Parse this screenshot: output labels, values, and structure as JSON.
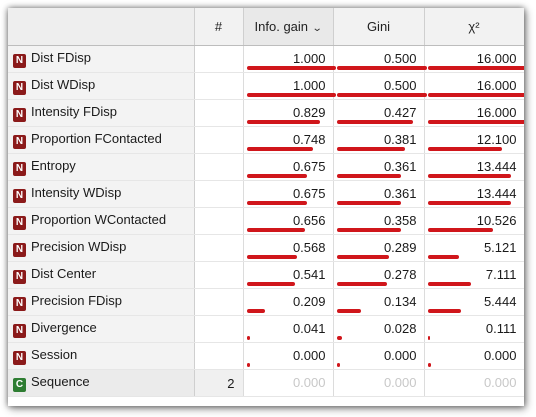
{
  "colors": {
    "bar": "#d0161b",
    "numeric_badge": "#8b1a1a",
    "categorical_badge": "#2e7d32"
  },
  "columns": {
    "rank": "#",
    "info_gain": "Info. gain",
    "sort_icon": "chevron-down-icon",
    "gini": "Gini",
    "chi2": "χ²"
  },
  "rows": [
    {
      "type": "N",
      "name": "Dist FDisp",
      "rank": "",
      "info_gain": "1.000",
      "gini": "0.500",
      "chi2": "16.000",
      "ig_frac": 1.0,
      "gini_frac": 1.0,
      "chi_frac": 1.0
    },
    {
      "type": "N",
      "name": "Dist WDisp",
      "rank": "",
      "info_gain": "1.000",
      "gini": "0.500",
      "chi2": "16.000",
      "ig_frac": 1.0,
      "gini_frac": 1.0,
      "chi_frac": 1.0
    },
    {
      "type": "N",
      "name": "Intensity FDisp",
      "rank": "",
      "info_gain": "0.829",
      "gini": "0.427",
      "chi2": "16.000",
      "ig_frac": 0.829,
      "gini_frac": 0.854,
      "chi_frac": 1.0
    },
    {
      "type": "N",
      "name": "Proportion FContacted",
      "rank": "",
      "info_gain": "0.748",
      "gini": "0.381",
      "chi2": "12.100",
      "ig_frac": 0.748,
      "gini_frac": 0.762,
      "chi_frac": 0.756
    },
    {
      "type": "N",
      "name": "Entropy",
      "rank": "",
      "info_gain": "0.675",
      "gini": "0.361",
      "chi2": "13.444",
      "ig_frac": 0.675,
      "gini_frac": 0.722,
      "chi_frac": 0.84
    },
    {
      "type": "N",
      "name": "Intensity WDisp",
      "rank": "",
      "info_gain": "0.675",
      "gini": "0.361",
      "chi2": "13.444",
      "ig_frac": 0.675,
      "gini_frac": 0.722,
      "chi_frac": 0.84
    },
    {
      "type": "N",
      "name": "Proportion WContacted",
      "rank": "",
      "info_gain": "0.656",
      "gini": "0.358",
      "chi2": "10.526",
      "ig_frac": 0.656,
      "gini_frac": 0.716,
      "chi_frac": 0.658
    },
    {
      "type": "N",
      "name": "Precision WDisp",
      "rank": "",
      "info_gain": "0.568",
      "gini": "0.289",
      "chi2": "5.121",
      "ig_frac": 0.568,
      "gini_frac": 0.578,
      "chi_frac": 0.32
    },
    {
      "type": "N",
      "name": "Dist Center",
      "rank": "",
      "info_gain": "0.541",
      "gini": "0.278",
      "chi2": "7.111",
      "ig_frac": 0.541,
      "gini_frac": 0.556,
      "chi_frac": 0.444
    },
    {
      "type": "N",
      "name": "Precision FDisp",
      "rank": "",
      "info_gain": "0.209",
      "gini": "0.134",
      "chi2": "5.444",
      "ig_frac": 0.209,
      "gini_frac": 0.268,
      "chi_frac": 0.34
    },
    {
      "type": "N",
      "name": "Divergence",
      "rank": "",
      "info_gain": "0.041",
      "gini": "0.028",
      "chi2": "0.111",
      "ig_frac": 0.041,
      "gini_frac": 0.056,
      "chi_frac": 0.007
    },
    {
      "type": "N",
      "name": "Session",
      "rank": "",
      "info_gain": "0.000",
      "gini": "0.000",
      "chi2": "0.000",
      "ig_frac": 0.0,
      "gini_frac": 0.0,
      "chi_frac": 0.0
    },
    {
      "type": "C",
      "name": "Sequence",
      "rank": "2",
      "info_gain": "0.000",
      "gini": "0.000",
      "chi2": "0.000",
      "ig_frac": 0.0,
      "gini_frac": 0.0,
      "chi_frac": 0.0
    }
  ]
}
